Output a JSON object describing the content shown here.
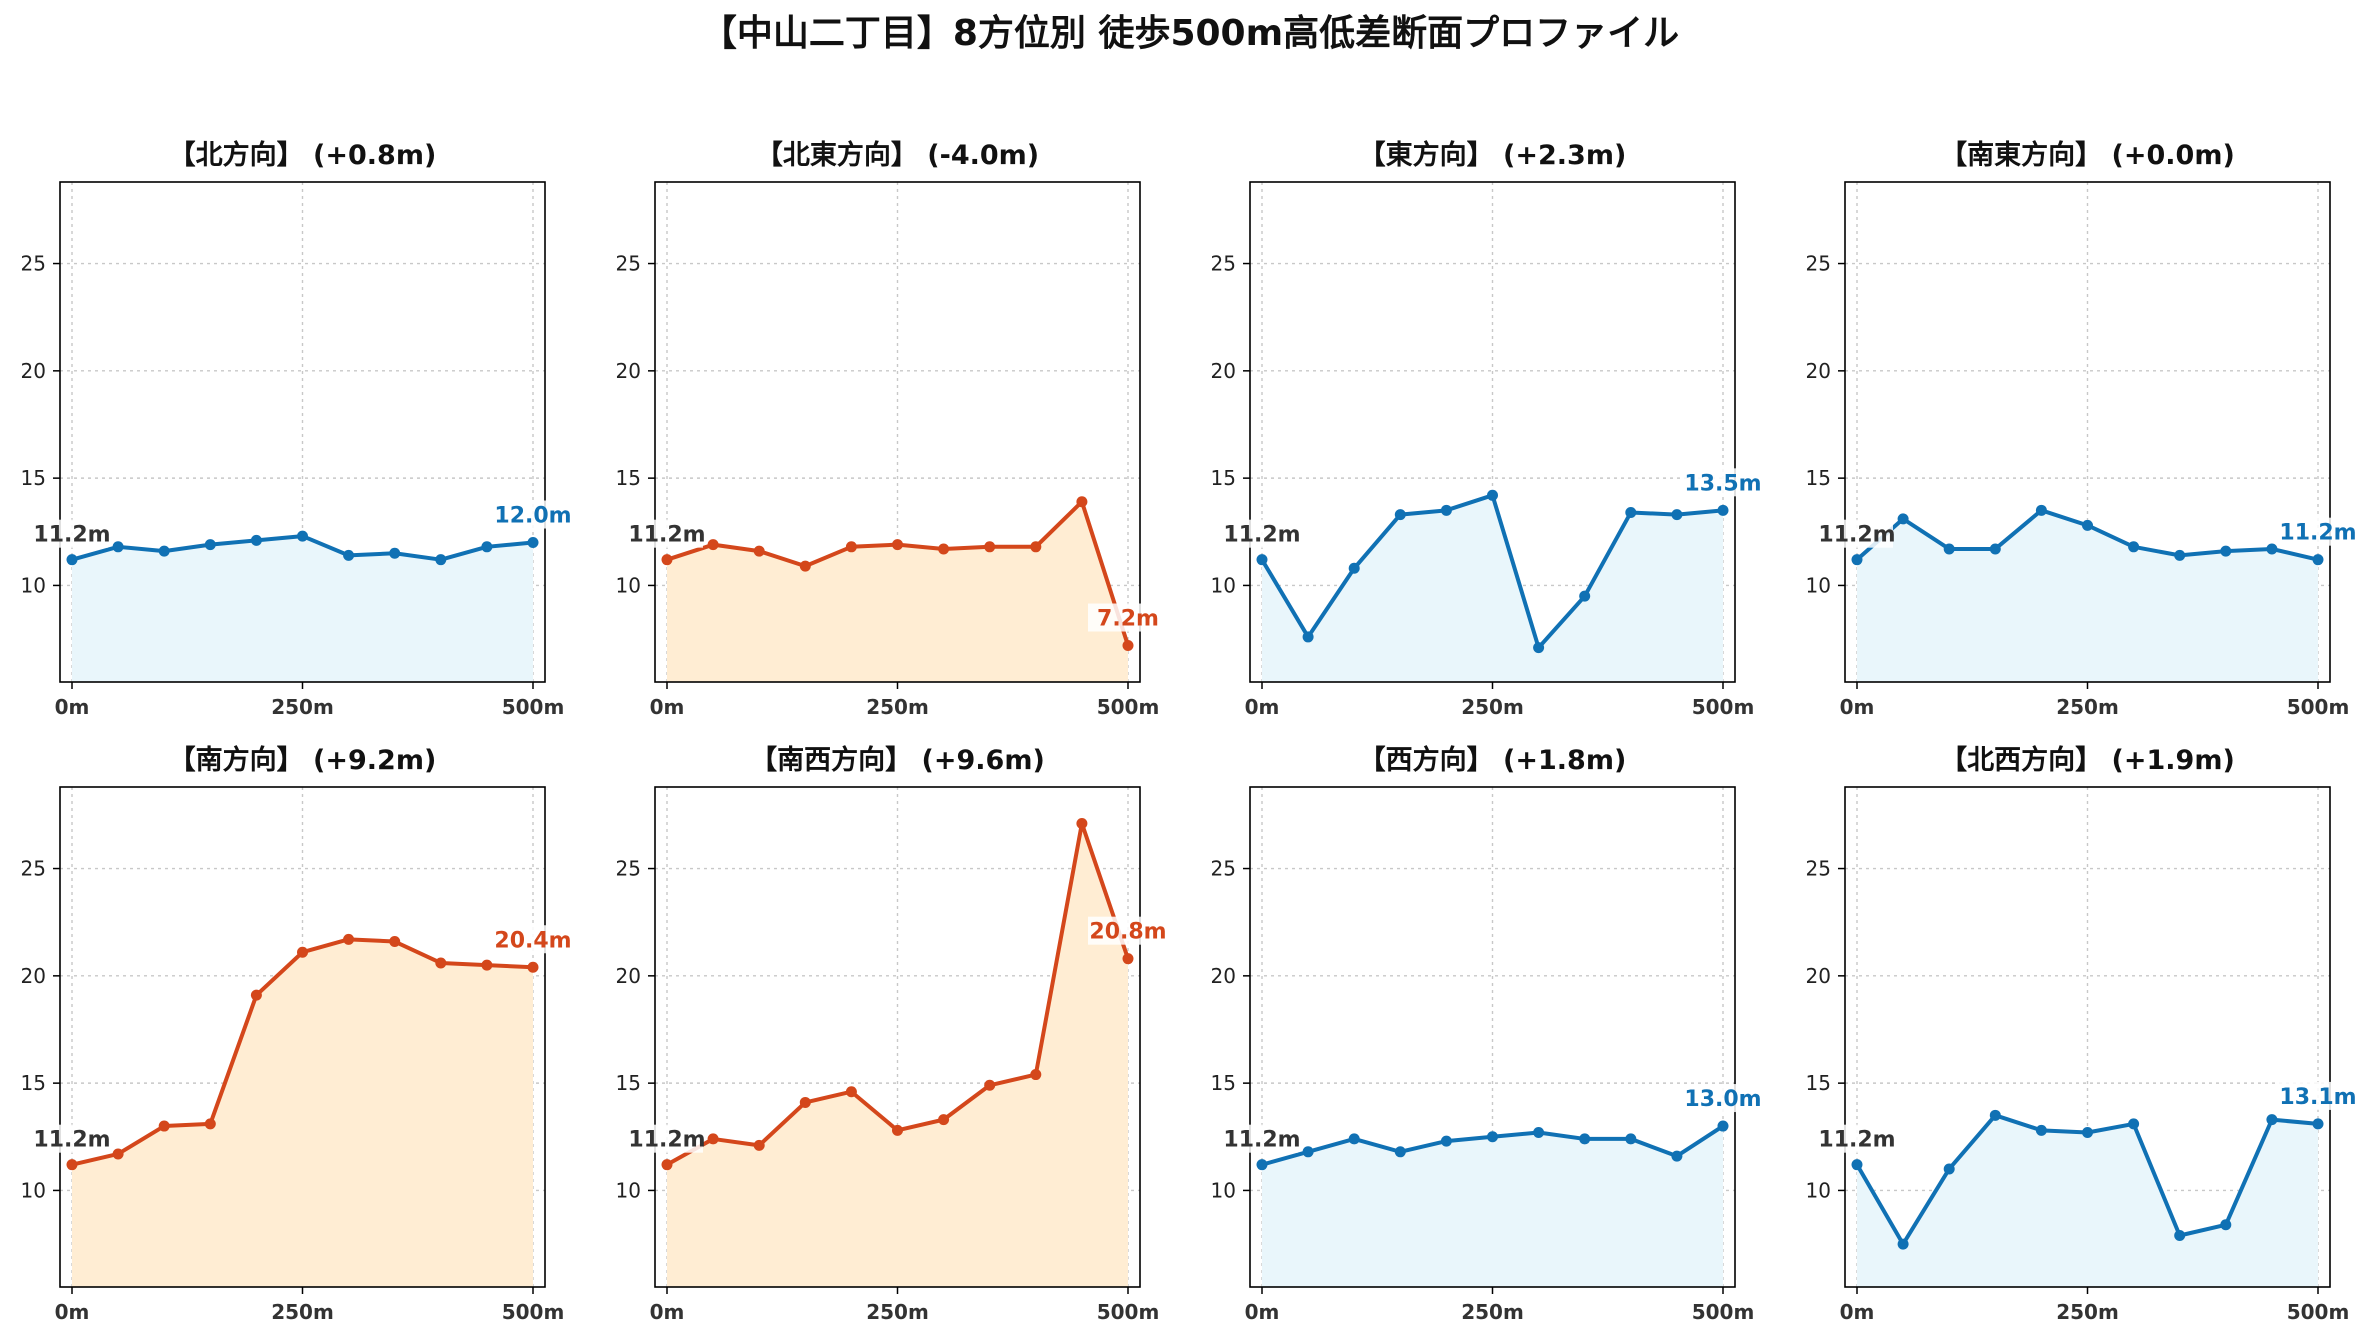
{
  "title": "【中山二丁目】8方位別 徒歩500m高低差断面プロファイル",
  "colors": {
    "up_line": "#1071b4",
    "up_fill": "#e9f6fb",
    "down_line": "#d4471b",
    "down_fill": "#ffedd3",
    "grid": "#c8c8c8",
    "start_label": "#333333"
  },
  "chart_data": [
    {
      "type": "area",
      "title": "【北方向】 (+0.8m)",
      "trend": "up",
      "x": [
        0,
        50,
        100,
        150,
        200,
        250,
        300,
        350,
        400,
        450,
        500
      ],
      "values": [
        11.2,
        11.8,
        11.6,
        11.9,
        12.1,
        12.3,
        11.4,
        11.5,
        11.2,
        11.8,
        12.0
      ],
      "start_label": "11.2m",
      "end_label": "12.0m",
      "xlim": [
        0,
        500
      ],
      "ylim": [
        5.5,
        28.8
      ],
      "xticks": [
        "0m",
        "250m",
        "500m"
      ],
      "yticks": [
        10,
        15,
        20,
        25
      ],
      "grid": true
    },
    {
      "type": "area",
      "title": "【北東方向】 (-4.0m)",
      "trend": "down",
      "x": [
        0,
        50,
        100,
        150,
        200,
        250,
        300,
        350,
        400,
        450,
        500
      ],
      "values": [
        11.2,
        11.9,
        11.6,
        10.9,
        11.8,
        11.9,
        11.7,
        11.8,
        11.8,
        13.9,
        7.2
      ],
      "start_label": "11.2m",
      "end_label": "7.2m",
      "xlim": [
        0,
        500
      ],
      "ylim": [
        5.5,
        28.8
      ],
      "xticks": [
        "0m",
        "250m",
        "500m"
      ],
      "yticks": [
        10,
        15,
        20,
        25
      ],
      "grid": true
    },
    {
      "type": "area",
      "title": "【東方向】 (+2.3m)",
      "trend": "up",
      "x": [
        0,
        50,
        100,
        150,
        200,
        250,
        300,
        350,
        400,
        450,
        500
      ],
      "values": [
        11.2,
        7.6,
        10.8,
        13.3,
        13.5,
        14.2,
        7.1,
        9.5,
        13.4,
        13.3,
        13.5
      ],
      "start_label": "11.2m",
      "end_label": "13.5m",
      "xlim": [
        0,
        500
      ],
      "ylim": [
        5.5,
        28.8
      ],
      "xticks": [
        "0m",
        "250m",
        "500m"
      ],
      "yticks": [
        10,
        15,
        20,
        25
      ],
      "grid": true
    },
    {
      "type": "area",
      "title": "【南東方向】 (+0.0m)",
      "trend": "up",
      "x": [
        0,
        50,
        100,
        150,
        200,
        250,
        300,
        350,
        400,
        450,
        500
      ],
      "values": [
        11.2,
        13.1,
        11.7,
        11.7,
        13.5,
        12.8,
        11.8,
        11.4,
        11.6,
        11.7,
        11.2
      ],
      "start_label": "11.2m",
      "end_label": "11.2m",
      "xlim": [
        0,
        500
      ],
      "ylim": [
        5.5,
        28.8
      ],
      "xticks": [
        "0m",
        "250m",
        "500m"
      ],
      "yticks": [
        10,
        15,
        20,
        25
      ],
      "grid": true
    },
    {
      "type": "area",
      "title": "【南方向】 (+9.2m)",
      "trend": "down",
      "x": [
        0,
        50,
        100,
        150,
        200,
        250,
        300,
        350,
        400,
        450,
        500
      ],
      "values": [
        11.2,
        11.7,
        13.0,
        13.1,
        19.1,
        21.1,
        21.7,
        21.6,
        20.6,
        20.5,
        20.4
      ],
      "start_label": "11.2m",
      "end_label": "20.4m",
      "xlim": [
        0,
        500
      ],
      "ylim": [
        5.5,
        28.8
      ],
      "xticks": [
        "0m",
        "250m",
        "500m"
      ],
      "yticks": [
        10,
        15,
        20,
        25
      ],
      "grid": true
    },
    {
      "type": "area",
      "title": "【南西方向】 (+9.6m)",
      "trend": "down",
      "x": [
        0,
        50,
        100,
        150,
        200,
        250,
        300,
        350,
        400,
        450,
        500
      ],
      "values": [
        11.2,
        12.4,
        12.1,
        14.1,
        14.6,
        12.8,
        13.3,
        14.9,
        15.4,
        27.1,
        20.8
      ],
      "start_label": "11.2m",
      "end_label": "20.8m",
      "xlim": [
        0,
        500
      ],
      "ylim": [
        5.5,
        28.8
      ],
      "xticks": [
        "0m",
        "250m",
        "500m"
      ],
      "yticks": [
        10,
        15,
        20,
        25
      ],
      "grid": true
    },
    {
      "type": "area",
      "title": "【西方向】 (+1.8m)",
      "trend": "up",
      "x": [
        0,
        50,
        100,
        150,
        200,
        250,
        300,
        350,
        400,
        450,
        500
      ],
      "values": [
        11.2,
        11.8,
        12.4,
        11.8,
        12.3,
        12.5,
        12.7,
        12.4,
        12.4,
        11.6,
        13.0
      ],
      "start_label": "11.2m",
      "end_label": "13.0m",
      "xlim": [
        0,
        500
      ],
      "ylim": [
        5.5,
        28.8
      ],
      "xticks": [
        "0m",
        "250m",
        "500m"
      ],
      "yticks": [
        10,
        15,
        20,
        25
      ],
      "grid": true
    },
    {
      "type": "area",
      "title": "【北西方向】 (+1.9m)",
      "trend": "up",
      "x": [
        0,
        50,
        100,
        150,
        200,
        250,
        300,
        350,
        400,
        450,
        500
      ],
      "values": [
        11.2,
        7.5,
        11.0,
        13.5,
        12.8,
        12.7,
        13.1,
        7.9,
        8.4,
        13.3,
        13.1
      ],
      "start_label": "11.2m",
      "end_label": "13.1m",
      "xlim": [
        0,
        500
      ],
      "ylim": [
        5.5,
        28.8
      ],
      "xticks": [
        "0m",
        "250m",
        "500m"
      ],
      "yticks": [
        10,
        15,
        20,
        25
      ],
      "grid": true
    }
  ]
}
